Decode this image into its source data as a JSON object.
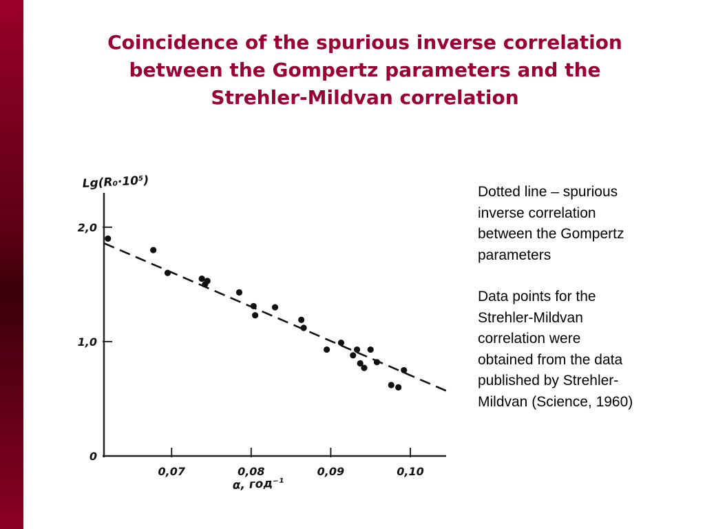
{
  "slide": {
    "title_lines": [
      "Coincidence of the spurious inverse correlation",
      "between the Gompertz parameters and the",
      "Strehler-Mildvan correlation"
    ],
    "note1_lines": [
      "Dotted line – spurious",
      "inverse correlation",
      "between the Gompertz",
      "parameters"
    ],
    "note2_lines": [
      "Data points for the",
      "Strehler-Mildvan",
      "correlation were",
      "obtained from the data",
      "published by Strehler-",
      "Mildvan (Science, 1960)"
    ],
    "accent_color": "#990033"
  },
  "chart_data": {
    "type": "scatter",
    "ylabel": "Lg(R₀·10⁵)",
    "xlabel": "α, год⁻¹",
    "x_ticks": [
      "0,07",
      "0,08",
      "0,09",
      "0,10"
    ],
    "x_tick_values": [
      0.07,
      0.08,
      0.09,
      0.1
    ],
    "y_ticks": [
      "0",
      "1,0",
      "2,0"
    ],
    "y_tick_values": [
      0,
      1.0,
      2.0
    ],
    "xlim": [
      0.0615,
      0.1045
    ],
    "ylim": [
      0,
      2.3
    ],
    "grid": false,
    "points": [
      {
        "x": 0.062,
        "y": 1.9
      },
      {
        "x": 0.0677,
        "y": 1.8
      },
      {
        "x": 0.0695,
        "y": 1.6
      },
      {
        "x": 0.0738,
        "y": 1.55
      },
      {
        "x": 0.0742,
        "y": 1.5
      },
      {
        "x": 0.0745,
        "y": 1.53
      },
      {
        "x": 0.0785,
        "y": 1.43
      },
      {
        "x": 0.0803,
        "y": 1.31
      },
      {
        "x": 0.0805,
        "y": 1.23
      },
      {
        "x": 0.083,
        "y": 1.3
      },
      {
        "x": 0.0863,
        "y": 1.19
      },
      {
        "x": 0.0866,
        "y": 1.12
      },
      {
        "x": 0.0895,
        "y": 0.93
      },
      {
        "x": 0.0913,
        "y": 0.99
      },
      {
        "x": 0.0928,
        "y": 0.88
      },
      {
        "x": 0.0933,
        "y": 0.93
      },
      {
        "x": 0.0937,
        "y": 0.81
      },
      {
        "x": 0.0942,
        "y": 0.77
      },
      {
        "x": 0.095,
        "y": 0.93
      },
      {
        "x": 0.0958,
        "y": 0.82
      },
      {
        "x": 0.0976,
        "y": 0.62
      },
      {
        "x": 0.0985,
        "y": 0.6
      },
      {
        "x": 0.0992,
        "y": 0.75
      }
    ],
    "fit_line": {
      "x": [
        0.0615,
        0.1045
      ],
      "y": [
        1.86,
        0.57
      ],
      "style": "dashed"
    }
  }
}
